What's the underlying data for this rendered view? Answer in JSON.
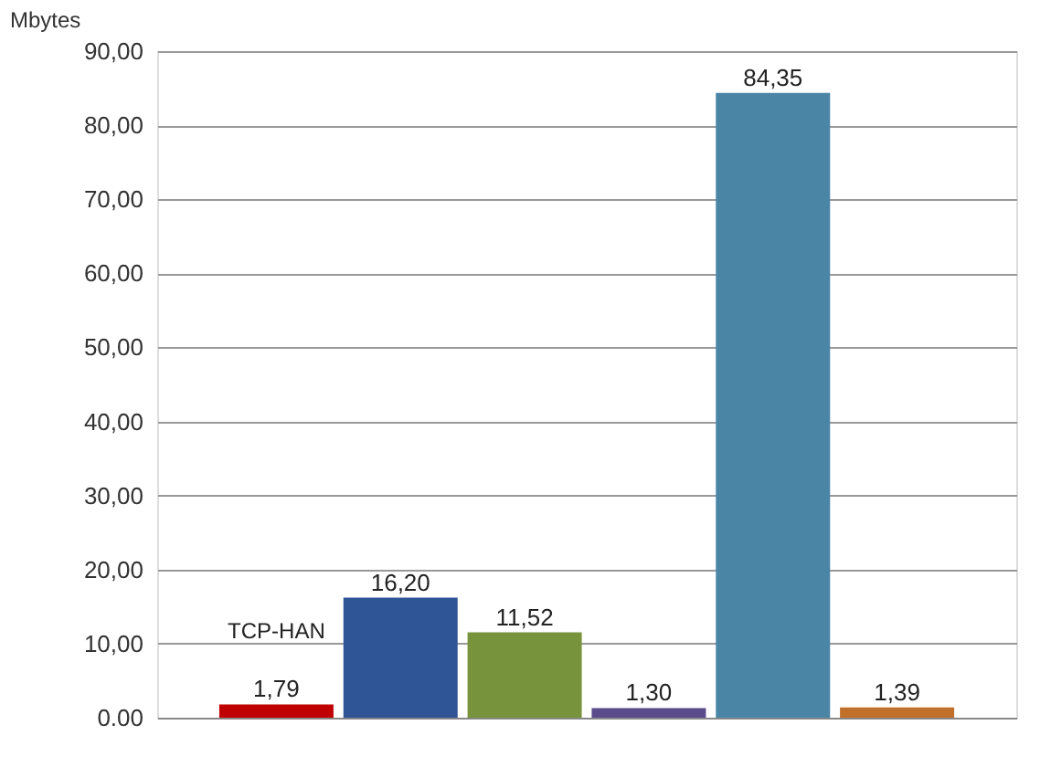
{
  "chart_data": {
    "type": "bar",
    "ylabel": "Mbytes",
    "categories": [
      null,
      null,
      null,
      null,
      null,
      null
    ],
    "values": [
      1.79,
      16.2,
      11.52,
      1.3,
      84.35,
      1.39
    ],
    "colors": [
      "#c00000",
      "#2f5597",
      "#77933c",
      "#5b4a8c",
      "#4a85a6",
      "#c0702a"
    ],
    "value_labels": [
      "1,79",
      "16,20",
      "11,52",
      "1,30",
      "84,35",
      "1,39"
    ],
    "annotations": [
      "TCP-HAN"
    ],
    "ylim": [
      0,
      90
    ],
    "yticks": [
      {
        "value": 0,
        "label": "0.00"
      },
      {
        "value": 10,
        "label": "10,00"
      },
      {
        "value": 20,
        "label": "20,00"
      },
      {
        "value": 30,
        "label": "30,00"
      },
      {
        "value": 40,
        "label": "40,00"
      },
      {
        "value": 50,
        "label": "50,00"
      },
      {
        "value": 60,
        "label": "60,00"
      },
      {
        "value": 70,
        "label": "70,00"
      },
      {
        "value": 80,
        "label": "80,00"
      },
      {
        "value": 90,
        "label": "90,00"
      }
    ],
    "grid": "y"
  }
}
